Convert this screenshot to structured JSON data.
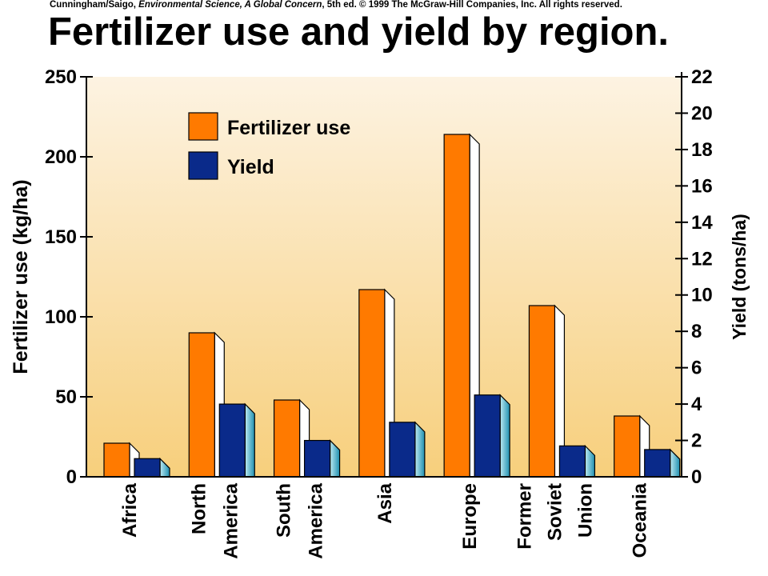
{
  "credit": {
    "prefix": "Cunningham/Saigo, ",
    "book": "Environmental Science, A Global Concern",
    "suffix": ", 5th ed. © 1999 The McGraw-Hill Companies, Inc. All rights reserved."
  },
  "colors": {
    "fertilizer": "#ff7a00",
    "yield": "#0a2a8a",
    "background_top": "#fdf3e2",
    "background_bottom": "#f7cf7c"
  },
  "chart_data": {
    "type": "bar",
    "title": "Fertilizer use and yield by region.",
    "categories": [
      [
        "Africa"
      ],
      [
        "North",
        "America"
      ],
      [
        "South",
        "America"
      ],
      [
        "Asia"
      ],
      [
        "Europe"
      ],
      [
        "Former",
        "Soviet",
        "Union"
      ],
      [
        "Oceania"
      ]
    ],
    "series": [
      {
        "name": "Fertilizer use",
        "axis": "left",
        "values": [
          21,
          90,
          48,
          117,
          214,
          107,
          38
        ]
      },
      {
        "name": "Yield",
        "axis": "right",
        "values": [
          1.0,
          4.0,
          2.0,
          3.0,
          4.5,
          1.7,
          1.5
        ]
      }
    ],
    "ylabel_left": "Fertilizer use (kg/ha)",
    "ylabel_right": "Yield (tons/ha)",
    "ylim_left": [
      0,
      250
    ],
    "ylim_right": [
      0,
      22
    ],
    "yticks_left": [
      0,
      50,
      100,
      150,
      200,
      250
    ],
    "yticks_right": [
      0,
      2,
      4,
      6,
      8,
      10,
      12,
      14,
      16,
      18,
      20,
      22
    ],
    "legend_position": "top-left",
    "grid": false
  }
}
